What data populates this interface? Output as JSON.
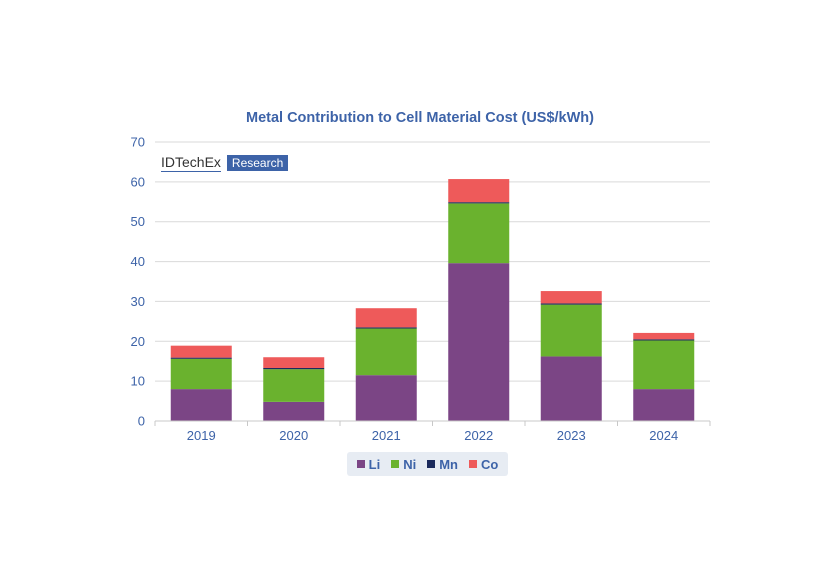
{
  "chart_data": {
    "type": "bar",
    "stacked": true,
    "title": "Metal Contribution to Cell Material Cost (US$/kWh)",
    "categories": [
      "2019",
      "2020",
      "2021",
      "2022",
      "2023",
      "2024"
    ],
    "series": [
      {
        "name": "Li",
        "color": "#7b4585",
        "values": [
          8.0,
          4.8,
          11.5,
          39.6,
          16.2,
          8.0
        ]
      },
      {
        "name": "Ni",
        "color": "#6ab22e",
        "values": [
          7.6,
          8.2,
          11.7,
          15.0,
          13.0,
          12.2
        ]
      },
      {
        "name": "Mn",
        "color": "#1b2a5c",
        "values": [
          0.3,
          0.3,
          0.3,
          0.3,
          0.3,
          0.3
        ]
      },
      {
        "name": "Co",
        "color": "#ee5a5a",
        "values": [
          3.0,
          2.7,
          4.8,
          5.8,
          3.1,
          1.6
        ]
      }
    ],
    "ylim": [
      0,
      70
    ],
    "yticks": [
      0,
      10,
      20,
      30,
      40,
      50,
      60,
      70
    ],
    "grid": true,
    "legend_position": "bottom"
  },
  "watermark": {
    "brand": "IDTechEx",
    "sub": "Research"
  }
}
